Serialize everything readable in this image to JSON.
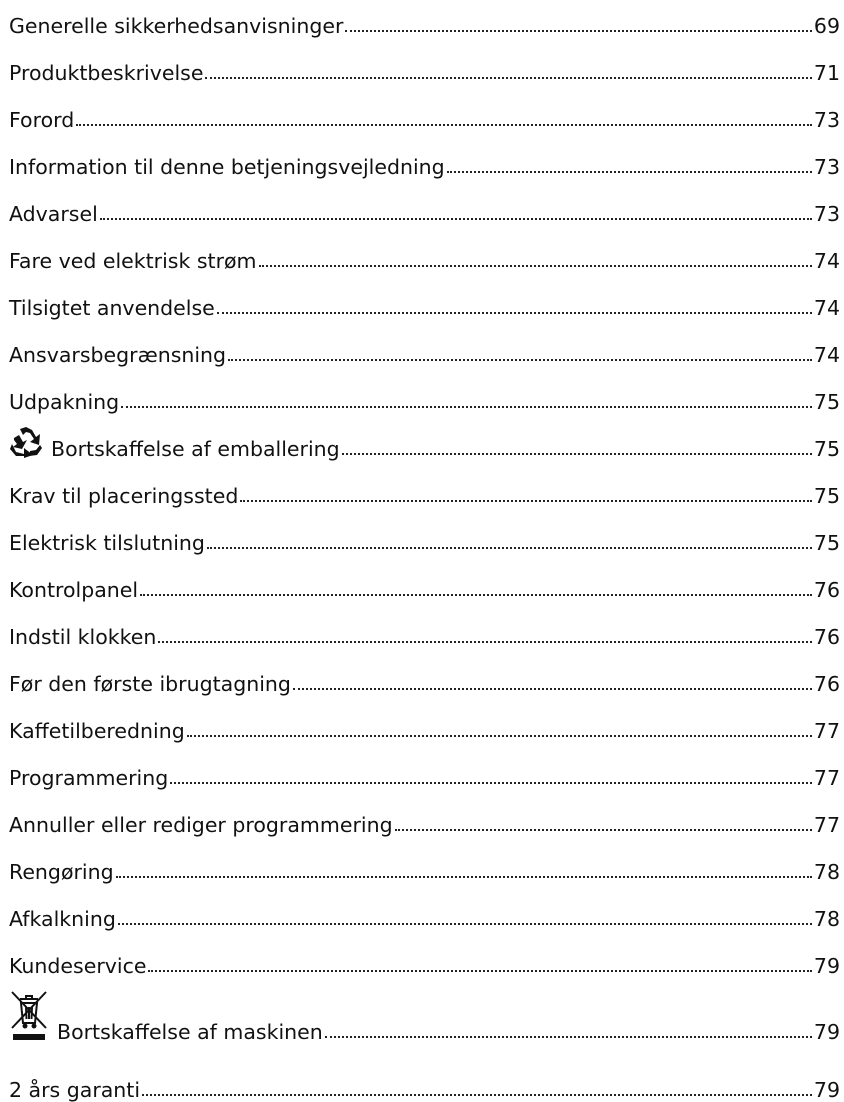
{
  "toc": {
    "entries": [
      {
        "title": "Generelle sikkerhedsanvisninger",
        "page": "69"
      },
      {
        "title": "Produktbeskrivelse",
        "page": "71"
      },
      {
        "title": "Forord",
        "page": "73"
      },
      {
        "title": "Information til denne betjeningsvejledning",
        "page": "73"
      },
      {
        "title": "Advarsel",
        "page": "73"
      },
      {
        "title": "Fare ved elektrisk strøm",
        "page": "74"
      },
      {
        "title": "Tilsigtet anvendelse",
        "page": "74"
      },
      {
        "title": "Ansvarsbegrænsning",
        "page": "74"
      },
      {
        "title": "Udpakning",
        "page": "75"
      },
      {
        "title": "Bortskaffelse af emballering",
        "page": "75",
        "icon": "recycle-icon"
      },
      {
        "title": "Krav til placeringssted",
        "page": "75"
      },
      {
        "title": "Elektrisk tilslutning",
        "page": "75"
      },
      {
        "title": "Kontrolpanel",
        "page": "76"
      },
      {
        "title": "Indstil klokken",
        "page": "76"
      },
      {
        "title": "Før den første ibrugtagning",
        "page": "76"
      },
      {
        "title": "Kaffetilberedning",
        "page": "77"
      },
      {
        "title": "Programmering",
        "page": "77"
      },
      {
        "title": "Annuller eller rediger programmering",
        "page": "77"
      },
      {
        "title": "Rengøring",
        "page": "78"
      },
      {
        "title": "Afkalkning",
        "page": "78"
      },
      {
        "title": "Kundeservice",
        "page": "79"
      },
      {
        "title": "Bortskaffelse af maskinen",
        "page": "79",
        "icon": "crossed-out-bin-icon"
      },
      {
        "title": "2 års garanti",
        "page": "79"
      }
    ]
  }
}
